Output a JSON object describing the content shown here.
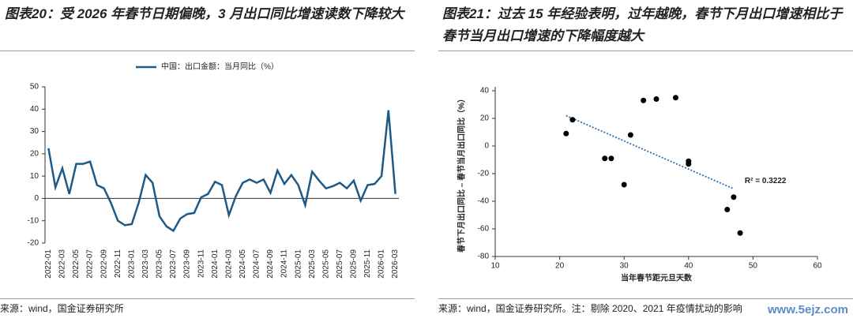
{
  "chart_data": [
    {
      "type": "line",
      "title": "图表20：受 2026 年春节日期偏晚，3 月出口同比增速读数下降较大",
      "source": "来源：wind，国金证券研究所",
      "categories": [
        "2022-01",
        null,
        "2022-03",
        null,
        "2022-05",
        null,
        "2022-07",
        null,
        "2022-09",
        null,
        "2022-11",
        null,
        "2023-01",
        null,
        "2023-03",
        null,
        "2023-05",
        null,
        "2023-07",
        null,
        "2023-09",
        null,
        "2023-11",
        null,
        "2024-01",
        null,
        "2024-03",
        null,
        "2024-05",
        null,
        "2024-07",
        null,
        "2024-09",
        null,
        "2024-11",
        null,
        "2025-01",
        null,
        "2025-03",
        null,
        "2025-05",
        null,
        "2025-07",
        null,
        "2025-09",
        null,
        "2025-11",
        null,
        "2026-01",
        null,
        "2026-03"
      ],
      "series": [
        {
          "name": "中国：出口金额：当月同比（%）",
          "color": "#1f5a86",
          "values": [
            22.5,
            5,
            13.5,
            2,
            15.5,
            15.5,
            16.5,
            6,
            4.5,
            -2,
            -10,
            -12,
            -11.5,
            -2,
            10.5,
            7,
            -8,
            -12.5,
            -14.5,
            -9,
            -7,
            -6.5,
            0.5,
            2,
            7.5,
            6,
            -7.5,
            1,
            7,
            8.5,
            7,
            8.5,
            2.5,
            12.5,
            6.5,
            10.5,
            6,
            -3,
            12,
            8,
            4.5,
            5.5,
            7,
            4.5,
            8,
            -1,
            6,
            6.5,
            10,
            39.5,
            2
          ]
        }
      ],
      "ylim": [
        -20,
        50
      ],
      "yticks": [
        -20,
        -10,
        0,
        10,
        20,
        30,
        40,
        50
      ]
    },
    {
      "type": "scatter",
      "title": "图表21：过去 15 年经验表明，过年越晚，春节下月出口增速相比于春节当月出口增速的下降幅度越大",
      "source": "来源：wind，国金证券研究所。注：剔除 2020、2021 年疫情扰动的影响",
      "x_label": "当年春节距元旦天数",
      "y_label": "春节下月出口同比 – 春节当月出口同比（%）",
      "annotation": "R² = 0.3222",
      "series": [
        {
          "color": "#000000",
          "x": [
            21,
            22,
            27,
            28,
            30,
            31,
            33,
            35,
            38,
            40,
            40,
            46,
            47,
            48
          ],
          "values": [
            9,
            19,
            -9,
            -9,
            -28,
            8,
            33,
            34,
            35,
            -11,
            -13,
            -46,
            -37,
            -63
          ]
        }
      ],
      "trendline": {
        "color": "#2e6db4",
        "x": [
          21,
          47
        ],
        "values": [
          22,
          -31
        ]
      },
      "xlim": [
        10,
        60
      ],
      "xticks": [
        10,
        20,
        30,
        40,
        50,
        60
      ],
      "ylim": [
        -80,
        40
      ],
      "yticks": [
        -80,
        -60,
        -40,
        -20,
        0,
        20,
        40
      ]
    }
  ],
  "watermark": "www.5ejz.com"
}
